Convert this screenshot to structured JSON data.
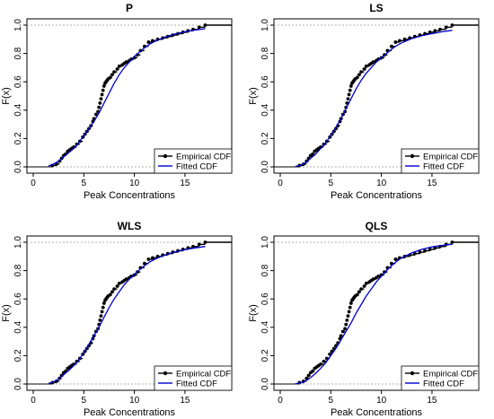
{
  "chart_data": [
    {
      "type": "line",
      "title": "P",
      "xlabel": "Peak Concentrations",
      "ylabel": "F(x)",
      "xlim": [
        0,
        19
      ],
      "ylim": [
        0,
        1
      ],
      "xticks": [
        "0",
        "5",
        "10",
        "15"
      ],
      "yticks": [
        "0.0",
        "0.2",
        "0.4",
        "0.6",
        "0.8",
        "1.0"
      ],
      "legend": {
        "position": "bottom-right",
        "entries": [
          "Empirical CDF",
          "Fitted CDF"
        ]
      },
      "series": [
        {
          "name": "Empirical CDF",
          "color": "#000000",
          "kind": "step-points",
          "x": [
            1.9,
            2.3,
            2.6,
            2.8,
            3.0,
            3.2,
            3.4,
            3.6,
            3.8,
            4.0,
            4.3,
            4.6,
            4.9,
            5.1,
            5.3,
            5.5,
            5.7,
            5.9,
            6.0,
            6.2,
            6.4,
            6.5,
            6.6,
            6.7,
            6.8,
            6.9,
            7.0,
            7.1,
            7.2,
            7.3,
            7.4,
            7.6,
            7.8,
            8.0,
            8.3,
            8.5,
            8.8,
            9.0,
            9.2,
            9.5,
            9.7,
            10.0,
            10.3,
            10.6,
            11.0,
            11.4,
            11.8,
            12.3,
            12.8,
            13.3,
            13.8,
            14.3,
            14.8,
            15.3,
            15.8,
            16.4,
            17.0
          ],
          "y": [
            0.01,
            0.02,
            0.04,
            0.06,
            0.08,
            0.09,
            0.11,
            0.12,
            0.13,
            0.14,
            0.16,
            0.18,
            0.21,
            0.23,
            0.25,
            0.27,
            0.29,
            0.32,
            0.34,
            0.37,
            0.39,
            0.42,
            0.45,
            0.48,
            0.51,
            0.54,
            0.57,
            0.59,
            0.6,
            0.61,
            0.62,
            0.63,
            0.65,
            0.67,
            0.69,
            0.71,
            0.72,
            0.73,
            0.74,
            0.75,
            0.76,
            0.77,
            0.79,
            0.82,
            0.85,
            0.88,
            0.89,
            0.9,
            0.91,
            0.92,
            0.93,
            0.94,
            0.95,
            0.96,
            0.97,
            0.985,
            1.0
          ]
        },
        {
          "name": "Fitted CDF",
          "color": "#0000cc",
          "kind": "curve",
          "x": [
            1.5,
            2,
            2.5,
            3,
            3.5,
            4,
            4.5,
            5,
            5.5,
            6,
            6.5,
            7,
            7.5,
            8,
            8.5,
            9,
            9.5,
            10,
            10.5,
            11,
            11.5,
            12,
            13,
            14,
            15,
            16,
            17
          ],
          "y": [
            0.005,
            0.02,
            0.04,
            0.07,
            0.1,
            0.13,
            0.17,
            0.22,
            0.27,
            0.32,
            0.38,
            0.45,
            0.52,
            0.59,
            0.65,
            0.7,
            0.74,
            0.78,
            0.81,
            0.84,
            0.865,
            0.885,
            0.915,
            0.937,
            0.953,
            0.965,
            0.975
          ]
        }
      ]
    },
    {
      "type": "line",
      "title": "LS",
      "xlabel": "Peak Concentrations",
      "ylabel": "F(x)",
      "xlim": [
        0,
        19
      ],
      "ylim": [
        0,
        1
      ],
      "xticks": [
        "0",
        "5",
        "10",
        "15"
      ],
      "yticks": [
        "0.0",
        "0.2",
        "0.4",
        "0.6",
        "0.8",
        "1.0"
      ],
      "legend": {
        "position": "bottom-right",
        "entries": [
          "Empirical CDF",
          "Fitted CDF"
        ]
      },
      "series": [
        {
          "name": "Empirical CDF",
          "color": "#000000",
          "kind": "step-points",
          "x": [
            1.9,
            2.3,
            2.6,
            2.8,
            3.0,
            3.2,
            3.4,
            3.6,
            3.8,
            4.0,
            4.3,
            4.6,
            4.9,
            5.1,
            5.3,
            5.5,
            5.7,
            5.9,
            6.0,
            6.2,
            6.4,
            6.5,
            6.6,
            6.7,
            6.8,
            6.9,
            7.0,
            7.1,
            7.2,
            7.3,
            7.4,
            7.6,
            7.8,
            8.0,
            8.3,
            8.5,
            8.8,
            9.0,
            9.2,
            9.5,
            9.7,
            10.0,
            10.3,
            10.6,
            11.0,
            11.4,
            11.8,
            12.3,
            12.8,
            13.3,
            13.8,
            14.3,
            14.8,
            15.3,
            15.8,
            16.4,
            17.0
          ],
          "y": [
            0.01,
            0.02,
            0.04,
            0.06,
            0.08,
            0.09,
            0.11,
            0.12,
            0.13,
            0.14,
            0.16,
            0.18,
            0.21,
            0.23,
            0.25,
            0.27,
            0.29,
            0.32,
            0.34,
            0.37,
            0.39,
            0.42,
            0.45,
            0.48,
            0.51,
            0.54,
            0.57,
            0.59,
            0.6,
            0.61,
            0.62,
            0.63,
            0.65,
            0.67,
            0.69,
            0.71,
            0.72,
            0.73,
            0.74,
            0.75,
            0.76,
            0.77,
            0.79,
            0.82,
            0.85,
            0.88,
            0.89,
            0.9,
            0.91,
            0.92,
            0.93,
            0.94,
            0.95,
            0.96,
            0.97,
            0.985,
            1.0
          ]
        },
        {
          "name": "Fitted CDF",
          "color": "#0000cc",
          "kind": "curve",
          "x": [
            1.5,
            2,
            2.5,
            3,
            3.5,
            4,
            4.5,
            5,
            5.5,
            6,
            6.5,
            7,
            7.5,
            8,
            8.5,
            9,
            9.5,
            10,
            10.5,
            11,
            11.5,
            12,
            13,
            14,
            15,
            16,
            17
          ],
          "y": [
            0.003,
            0.012,
            0.03,
            0.06,
            0.09,
            0.13,
            0.17,
            0.22,
            0.28,
            0.34,
            0.41,
            0.48,
            0.55,
            0.61,
            0.66,
            0.7,
            0.74,
            0.77,
            0.8,
            0.83,
            0.855,
            0.875,
            0.905,
            0.925,
            0.94,
            0.953,
            0.963
          ]
        }
      ]
    },
    {
      "type": "line",
      "title": "WLS",
      "xlabel": "Peak Concentrations",
      "ylabel": "F(x)",
      "xlim": [
        0,
        19
      ],
      "ylim": [
        0,
        1
      ],
      "xticks": [
        "0",
        "5",
        "10",
        "15"
      ],
      "yticks": [
        "0.0",
        "0.2",
        "0.4",
        "0.6",
        "0.8",
        "1.0"
      ],
      "legend": {
        "position": "bottom-right",
        "entries": [
          "Empirical CDF",
          "Fitted CDF"
        ]
      },
      "series": [
        {
          "name": "Empirical CDF",
          "color": "#000000",
          "kind": "step-points",
          "x": [
            1.9,
            2.3,
            2.6,
            2.8,
            3.0,
            3.2,
            3.4,
            3.6,
            3.8,
            4.0,
            4.3,
            4.6,
            4.9,
            5.1,
            5.3,
            5.5,
            5.7,
            5.9,
            6.0,
            6.2,
            6.4,
            6.5,
            6.6,
            6.7,
            6.8,
            6.9,
            7.0,
            7.1,
            7.2,
            7.3,
            7.4,
            7.6,
            7.8,
            8.0,
            8.3,
            8.5,
            8.8,
            9.0,
            9.2,
            9.5,
            9.7,
            10.0,
            10.3,
            10.6,
            11.0,
            11.4,
            11.8,
            12.3,
            12.8,
            13.3,
            13.8,
            14.3,
            14.8,
            15.3,
            15.8,
            16.4,
            17.0
          ],
          "y": [
            0.01,
            0.02,
            0.04,
            0.06,
            0.08,
            0.09,
            0.11,
            0.12,
            0.13,
            0.14,
            0.16,
            0.18,
            0.21,
            0.23,
            0.25,
            0.27,
            0.29,
            0.32,
            0.34,
            0.37,
            0.39,
            0.42,
            0.45,
            0.48,
            0.51,
            0.54,
            0.57,
            0.59,
            0.6,
            0.61,
            0.62,
            0.63,
            0.65,
            0.67,
            0.69,
            0.71,
            0.72,
            0.73,
            0.74,
            0.75,
            0.76,
            0.77,
            0.79,
            0.82,
            0.85,
            0.88,
            0.89,
            0.9,
            0.91,
            0.92,
            0.93,
            0.94,
            0.95,
            0.96,
            0.97,
            0.985,
            1.0
          ]
        },
        {
          "name": "Fitted CDF",
          "color": "#0000cc",
          "kind": "curve",
          "x": [
            1.5,
            2,
            2.5,
            3,
            3.5,
            4,
            4.5,
            5,
            5.5,
            6,
            6.5,
            7,
            7.5,
            8,
            8.5,
            9,
            9.5,
            10,
            10.5,
            11,
            11.5,
            12,
            13,
            14,
            15,
            16,
            17
          ],
          "y": [
            0.004,
            0.015,
            0.035,
            0.065,
            0.095,
            0.13,
            0.17,
            0.22,
            0.28,
            0.34,
            0.4,
            0.47,
            0.54,
            0.6,
            0.65,
            0.7,
            0.74,
            0.775,
            0.805,
            0.835,
            0.86,
            0.88,
            0.91,
            0.932,
            0.948,
            0.96,
            0.97
          ]
        }
      ]
    },
    {
      "type": "line",
      "title": "QLS",
      "xlabel": "Peak Concentrations",
      "ylabel": "F(x)",
      "xlim": [
        0,
        19
      ],
      "ylim": [
        0,
        1
      ],
      "xticks": [
        "0",
        "5",
        "10",
        "15"
      ],
      "yticks": [
        "0.0",
        "0.2",
        "0.4",
        "0.6",
        "0.8",
        "1.0"
      ],
      "legend": {
        "position": "bottom-right",
        "entries": [
          "Empirical CDF",
          "Fitted CDF"
        ]
      },
      "series": [
        {
          "name": "Empirical CDF",
          "color": "#000000",
          "kind": "step-points",
          "x": [
            1.9,
            2.3,
            2.6,
            2.8,
            3.0,
            3.2,
            3.4,
            3.6,
            3.8,
            4.0,
            4.3,
            4.6,
            4.9,
            5.1,
            5.3,
            5.5,
            5.7,
            5.9,
            6.0,
            6.2,
            6.4,
            6.5,
            6.6,
            6.7,
            6.8,
            6.9,
            7.0,
            7.1,
            7.2,
            7.3,
            7.4,
            7.6,
            7.8,
            8.0,
            8.3,
            8.5,
            8.8,
            9.0,
            9.2,
            9.5,
            9.7,
            10.0,
            10.3,
            10.6,
            11.0,
            11.4,
            11.8,
            12.3,
            12.8,
            13.3,
            13.8,
            14.3,
            14.8,
            15.3,
            15.8,
            16.4,
            17.0
          ],
          "y": [
            0.01,
            0.02,
            0.04,
            0.06,
            0.08,
            0.09,
            0.11,
            0.12,
            0.13,
            0.14,
            0.16,
            0.18,
            0.21,
            0.23,
            0.25,
            0.27,
            0.29,
            0.32,
            0.34,
            0.37,
            0.39,
            0.42,
            0.45,
            0.48,
            0.51,
            0.54,
            0.57,
            0.59,
            0.6,
            0.61,
            0.62,
            0.63,
            0.65,
            0.67,
            0.69,
            0.71,
            0.72,
            0.73,
            0.74,
            0.75,
            0.76,
            0.77,
            0.79,
            0.82,
            0.85,
            0.88,
            0.89,
            0.9,
            0.91,
            0.92,
            0.93,
            0.94,
            0.95,
            0.96,
            0.97,
            0.985,
            1.0
          ]
        },
        {
          "name": "Fitted CDF",
          "color": "#0000cc",
          "kind": "curve",
          "x": [
            1.5,
            2,
            2.5,
            3,
            3.5,
            4,
            4.5,
            5,
            5.5,
            6,
            6.5,
            7,
            7.5,
            8,
            8.5,
            9,
            9.5,
            10,
            10.5,
            11,
            11.5,
            12,
            13,
            14,
            15,
            16,
            17
          ],
          "y": [
            0.002,
            0.008,
            0.02,
            0.045,
            0.075,
            0.11,
            0.15,
            0.2,
            0.25,
            0.31,
            0.37,
            0.43,
            0.5,
            0.56,
            0.62,
            0.67,
            0.72,
            0.76,
            0.8,
            0.835,
            0.865,
            0.89,
            0.925,
            0.95,
            0.967,
            0.978,
            0.986
          ]
        }
      ]
    }
  ]
}
